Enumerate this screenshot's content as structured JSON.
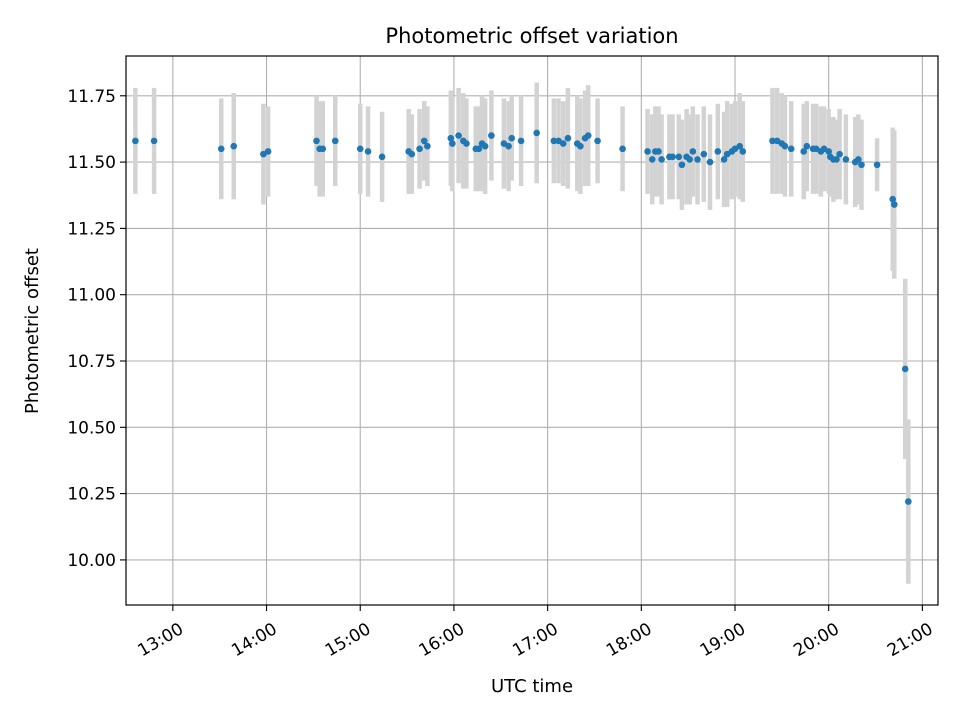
{
  "chart_data": {
    "type": "scatter",
    "title": "Photometric offset variation",
    "xlabel": "UTC time",
    "ylabel": "Photometric offset",
    "grid": true,
    "xlim": [
      "12:30",
      "21:10"
    ],
    "ylim": [
      9.83,
      11.9
    ],
    "x_ticks": [
      "13:00",
      "14:00",
      "15:00",
      "16:00",
      "17:00",
      "18:00",
      "19:00",
      "20:00",
      "21:00"
    ],
    "y_ticks": [
      "10.00",
      "10.25",
      "10.50",
      "10.75",
      "11.00",
      "11.25",
      "11.50",
      "11.75"
    ],
    "colors": {
      "point": "#1f77b4",
      "errorbar": "#d3d3d3",
      "grid": "#b0b0b0"
    },
    "series": [
      {
        "x": [
          "12:36",
          "12:48",
          "13:31",
          "13:39",
          "13:58",
          "14:01",
          "14:32",
          "14:34",
          "14:36",
          "14:44",
          "15:00",
          "15:05",
          "15:14",
          "15:31",
          "15:33",
          "15:38",
          "15:41",
          "15:43",
          "15:58",
          "15:59",
          "16:03",
          "16:06",
          "16:08",
          "16:14",
          "16:16",
          "16:18",
          "16:20",
          "16:24",
          "16:32",
          "16:35",
          "16:37",
          "16:43",
          "16:53",
          "17:04",
          "17:07",
          "17:10",
          "17:13",
          "17:19",
          "17:21",
          "17:24",
          "17:26",
          "17:32",
          "17:48",
          "18:04",
          "18:07",
          "18:09",
          "18:11",
          "18:13",
          "18:18",
          "18:20",
          "18:24",
          "18:26",
          "18:29",
          "18:31",
          "18:33",
          "18:36",
          "18:40",
          "18:44",
          "18:49",
          "18:53",
          "18:55",
          "18:58",
          "19:00",
          "19:03",
          "19:05",
          "19:24",
          "19:27",
          "19:30",
          "19:32",
          "19:36",
          "19:44",
          "19:46",
          "19:50",
          "19:52",
          "19:55",
          "19:57",
          "20:00",
          "20:01",
          "20:03",
          "20:05",
          "20:07",
          "20:11",
          "20:17",
          "20:19",
          "20:21",
          "20:31",
          "20:41",
          "20:42",
          "20:49",
          "20:51"
        ],
        "y": [
          11.58,
          11.58,
          11.55,
          11.56,
          11.53,
          11.54,
          11.58,
          11.55,
          11.55,
          11.58,
          11.55,
          11.54,
          11.52,
          11.54,
          11.53,
          11.55,
          11.58,
          11.56,
          11.59,
          11.57,
          11.6,
          11.58,
          11.57,
          11.55,
          11.55,
          11.57,
          11.56,
          11.6,
          11.57,
          11.56,
          11.59,
          11.58,
          11.61,
          11.58,
          11.58,
          11.57,
          11.59,
          11.57,
          11.56,
          11.59,
          11.6,
          11.58,
          11.55,
          11.54,
          11.51,
          11.54,
          11.54,
          11.51,
          11.52,
          11.52,
          11.52,
          11.49,
          11.52,
          11.51,
          11.54,
          11.51,
          11.53,
          11.5,
          11.54,
          11.51,
          11.53,
          11.54,
          11.55,
          11.56,
          11.54,
          11.58,
          11.58,
          11.57,
          11.56,
          11.55,
          11.54,
          11.56,
          11.55,
          11.55,
          11.54,
          11.55,
          11.54,
          11.52,
          11.51,
          11.51,
          11.53,
          11.51,
          11.5,
          11.51,
          11.49,
          11.49,
          11.36,
          11.34,
          10.72,
          10.22
        ],
        "yerr": [
          0.2,
          0.2,
          0.19,
          0.2,
          0.19,
          0.17,
          0.17,
          0.18,
          0.18,
          0.17,
          0.17,
          0.17,
          0.17,
          0.16,
          0.15,
          0.15,
          0.15,
          0.15,
          0.18,
          0.18,
          0.18,
          0.18,
          0.17,
          0.16,
          0.16,
          0.18,
          0.18,
          0.17,
          0.17,
          0.17,
          0.16,
          0.17,
          0.19,
          0.16,
          0.16,
          0.16,
          0.19,
          0.18,
          0.18,
          0.18,
          0.19,
          0.16,
          0.16,
          0.16,
          0.17,
          0.17,
          0.17,
          0.17,
          0.16,
          0.16,
          0.16,
          0.17,
          0.18,
          0.17,
          0.17,
          0.17,
          0.18,
          0.18,
          0.18,
          0.18,
          0.2,
          0.18,
          0.18,
          0.2,
          0.19,
          0.2,
          0.2,
          0.19,
          0.19,
          0.18,
          0.18,
          0.17,
          0.17,
          0.17,
          0.17,
          0.16,
          0.16,
          0.15,
          0.16,
          0.15,
          0.17,
          0.17,
          0.17,
          0.17,
          0.17,
          0.1,
          0.27,
          0.28,
          0.34,
          0.31
        ]
      }
    ]
  }
}
